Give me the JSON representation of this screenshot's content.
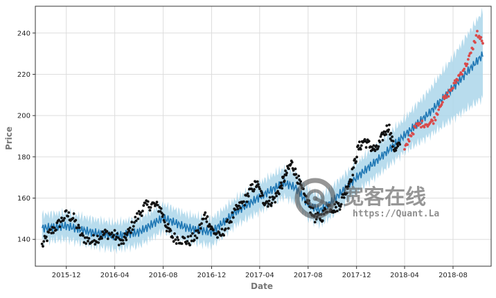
{
  "chart_data": {
    "type": "scatter",
    "title": "",
    "xlabel": "Date",
    "ylabel": "Price",
    "xlim": [
      "2015-09-14",
      "2018-11-05"
    ],
    "ylim": [
      127,
      253
    ],
    "grid": true,
    "x_tick_labels": [
      "2015-12",
      "2016-04",
      "2016-08",
      "2016-12",
      "2017-04",
      "2017-08",
      "2017-12",
      "2018-04",
      "2018-08"
    ],
    "x_tick_dates": [
      "2015-12-01",
      "2016-04-01",
      "2016-08-01",
      "2016-12-01",
      "2017-04-01",
      "2017-08-01",
      "2017-12-01",
      "2018-04-01",
      "2018-08-01"
    ],
    "y_ticks": [
      140,
      160,
      180,
      200,
      220,
      240
    ],
    "forecast_anchor": {
      "x": [
        "2015-10-01",
        "2015-12-01",
        "2016-02-01",
        "2016-04-01",
        "2016-06-01",
        "2016-08-01",
        "2016-10-01",
        "2016-12-01",
        "2017-02-01",
        "2017-04-01",
        "2017-06-01",
        "2017-07-01",
        "2017-08-01",
        "2017-09-01",
        "2017-10-01",
        "2017-12-01",
        "2018-02-01",
        "2018-04-01",
        "2018-06-01",
        "2018-08-01",
        "2018-10-15"
      ],
      "yhat": [
        145.5,
        146.5,
        143.5,
        141.5,
        143.5,
        150.5,
        145.5,
        143.5,
        153.5,
        160.5,
        167.5,
        165.0,
        157.0,
        154.0,
        158.5,
        170.0,
        180.0,
        190.5,
        201.0,
        213.5,
        229.5
      ],
      "band_halfwidth": [
        6.5,
        6.5,
        6.5,
        6.5,
        6.5,
        6.5,
        6.5,
        6.5,
        6.5,
        7.0,
        7.0,
        7.0,
        7.0,
        7.0,
        7.0,
        7.0,
        7.5,
        8.0,
        11.0,
        15.0,
        21.0
      ],
      "weekly_wiggle_amplitude": 2.2
    },
    "series": [
      {
        "role": "observed",
        "color": "#111111",
        "x": [
          "2015-10-01",
          "2015-10-20",
          "2015-11-10",
          "2015-12-01",
          "2015-12-20",
          "2016-01-10",
          "2016-02-01",
          "2016-02-20",
          "2016-03-10",
          "2016-04-01",
          "2016-04-20",
          "2016-05-05",
          "2016-05-25",
          "2016-06-15",
          "2016-07-05",
          "2016-07-25",
          "2016-08-10",
          "2016-08-25",
          "2016-09-15",
          "2016-10-05",
          "2016-10-25",
          "2016-11-15",
          "2016-12-01",
          "2016-12-20",
          "2017-01-10",
          "2017-02-01",
          "2017-02-20",
          "2017-03-10",
          "2017-03-25",
          "2017-04-10",
          "2017-04-25",
          "2017-05-10",
          "2017-05-25",
          "2017-06-05",
          "2017-06-20",
          "2017-07-05",
          "2017-07-20",
          "2017-08-05",
          "2017-08-20",
          "2017-09-05",
          "2017-09-20",
          "2017-10-05",
          "2017-10-20",
          "2017-11-05",
          "2017-11-20",
          "2017-12-05",
          "2017-12-20",
          "2018-01-05",
          "2018-01-20",
          "2018-02-05",
          "2018-02-20",
          "2018-03-05",
          "2018-03-20"
        ],
        "y": [
          137,
          143,
          147,
          152,
          150,
          141,
          139,
          141,
          143,
          142,
          138,
          143,
          150,
          156,
          157,
          155,
          146,
          141,
          140,
          139,
          142,
          152,
          145,
          141,
          147,
          154,
          158,
          164,
          167,
          159,
          158,
          160,
          166,
          171,
          177,
          170,
          162,
          156,
          150,
          151,
          156,
          155,
          157,
          164,
          172,
          184,
          188,
          185,
          183,
          190,
          195,
          184,
          186
        ],
        "spread": 2.6,
        "weekday_points_per_anchor": 9
      },
      {
        "role": "holdout",
        "color": "#d94a4a",
        "x": [
          "2018-04-01",
          "2018-04-15",
          "2018-05-01",
          "2018-05-15",
          "2018-06-01",
          "2018-06-15",
          "2018-07-01",
          "2018-07-15",
          "2018-08-01",
          "2018-08-15",
          "2018-09-01",
          "2018-09-15",
          "2018-10-01",
          "2018-10-15"
        ],
        "y": [
          183,
          190,
          195,
          196,
          196,
          198,
          206,
          209,
          214,
          219,
          224,
          230,
          240,
          235
        ],
        "spread": 1.6,
        "weekday_points_per_anchor": 6
      }
    ],
    "colors": {
      "forecast_line": "#1f77b4",
      "interval_band": "#abd6ea",
      "grid": "#dddddd",
      "axis": "#333333"
    }
  },
  "watermark": {
    "cn_text": "宽客在线",
    "url_text": "https://Quant.La"
  }
}
